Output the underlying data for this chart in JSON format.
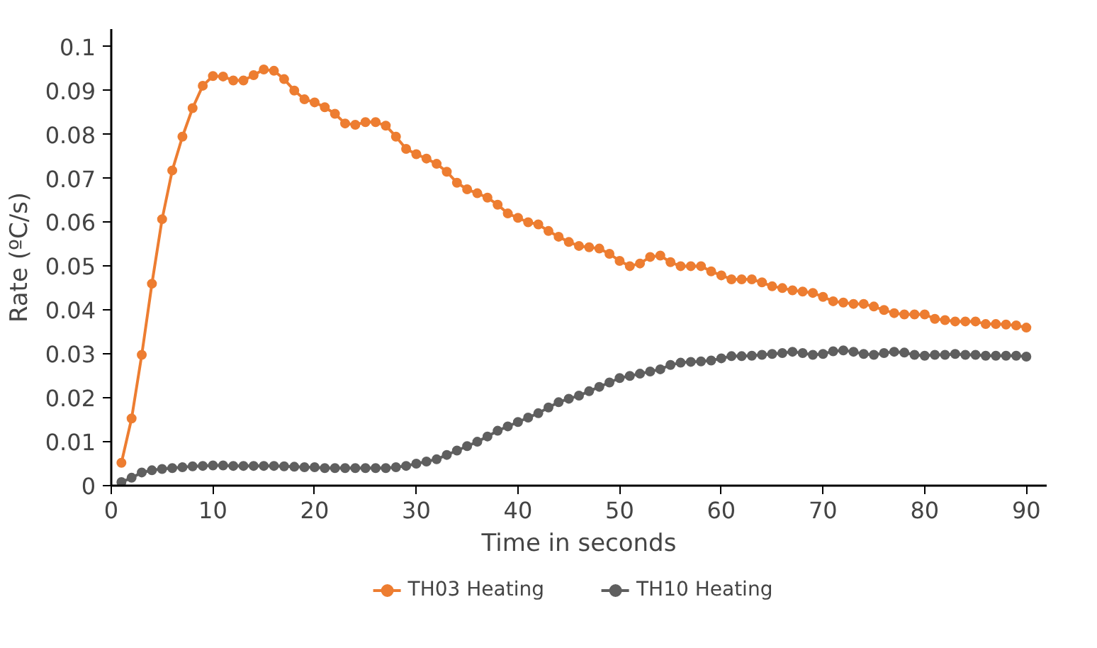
{
  "chart_data": {
    "type": "line",
    "xlabel": "Time in seconds",
    "ylabel": "Rate (ºC/s)",
    "x": [
      1,
      2,
      3,
      4,
      5,
      6,
      7,
      8,
      9,
      10,
      11,
      12,
      13,
      14,
      15,
      16,
      17,
      18,
      19,
      20,
      21,
      22,
      23,
      24,
      25,
      26,
      27,
      28,
      29,
      30,
      31,
      32,
      33,
      34,
      35,
      36,
      37,
      38,
      39,
      40,
      41,
      42,
      43,
      44,
      45,
      46,
      47,
      48,
      49,
      50,
      51,
      52,
      53,
      54,
      55,
      56,
      57,
      58,
      59,
      60,
      61,
      62,
      63,
      64,
      65,
      66,
      67,
      68,
      69,
      70,
      71,
      72,
      73,
      74,
      75,
      76,
      77,
      78,
      79,
      80,
      81,
      82,
      83,
      84,
      85,
      86,
      87,
      88,
      89,
      90
    ],
    "series": [
      {
        "name": "TH03 Heating",
        "color": "#ed7d31",
        "values": [
          0.0052,
          0.0153,
          0.0298,
          0.046,
          0.0607,
          0.0718,
          0.0795,
          0.086,
          0.0911,
          0.0933,
          0.0932,
          0.0923,
          0.0923,
          0.0935,
          0.0948,
          0.0945,
          0.0926,
          0.09,
          0.088,
          0.0873,
          0.0862,
          0.0847,
          0.0825,
          0.0822,
          0.0828,
          0.0828,
          0.082,
          0.0795,
          0.0767,
          0.0755,
          0.0745,
          0.0733,
          0.0715,
          0.069,
          0.0675,
          0.0666,
          0.0656,
          0.064,
          0.062,
          0.061,
          0.06,
          0.0595,
          0.058,
          0.0567,
          0.0555,
          0.0546,
          0.0543,
          0.054,
          0.0528,
          0.0512,
          0.05,
          0.0506,
          0.0521,
          0.0524,
          0.0509,
          0.05,
          0.05,
          0.05,
          0.0488,
          0.0479,
          0.047,
          0.047,
          0.047,
          0.0463,
          0.0454,
          0.045,
          0.0445,
          0.0442,
          0.0439,
          0.043,
          0.042,
          0.0417,
          0.0414,
          0.0414,
          0.0408,
          0.04,
          0.0393,
          0.039,
          0.039,
          0.039,
          0.038,
          0.0377,
          0.0374,
          0.0374,
          0.0374,
          0.0368,
          0.0368,
          0.0367,
          0.0365,
          0.036
        ]
      },
      {
        "name": "TH10 Heating",
        "color": "#5f5f5f",
        "values": [
          0.0008,
          0.0018,
          0.003,
          0.0035,
          0.0038,
          0.004,
          0.0042,
          0.0044,
          0.0045,
          0.0046,
          0.0046,
          0.0045,
          0.0045,
          0.0045,
          0.0045,
          0.0045,
          0.0044,
          0.0043,
          0.0042,
          0.0042,
          0.004,
          0.004,
          0.004,
          0.004,
          0.004,
          0.004,
          0.004,
          0.0042,
          0.0045,
          0.005,
          0.0055,
          0.006,
          0.007,
          0.008,
          0.009,
          0.01,
          0.0112,
          0.0125,
          0.0135,
          0.0145,
          0.0155,
          0.0165,
          0.0178,
          0.019,
          0.0198,
          0.0205,
          0.0215,
          0.0225,
          0.0235,
          0.0245,
          0.025,
          0.0255,
          0.026,
          0.0265,
          0.0275,
          0.028,
          0.0282,
          0.0283,
          0.0285,
          0.029,
          0.0295,
          0.0295,
          0.0296,
          0.0298,
          0.03,
          0.0302,
          0.0305,
          0.0302,
          0.0298,
          0.03,
          0.0306,
          0.0308,
          0.0305,
          0.03,
          0.0298,
          0.0302,
          0.0305,
          0.0303,
          0.0298,
          0.0296,
          0.0298,
          0.0298,
          0.03,
          0.0298,
          0.0298,
          0.0296,
          0.0296,
          0.0296,
          0.0296,
          0.0294
        ]
      }
    ],
    "xlim": [
      0,
      92
    ],
    "ylim": [
      0,
      0.104
    ],
    "xticks": [
      0,
      10,
      20,
      30,
      40,
      50,
      60,
      70,
      80,
      90
    ],
    "yticks": [
      {
        "value": 0,
        "label": "0"
      },
      0.01,
      0.02,
      0.03,
      0.04,
      0.05,
      0.06,
      0.07,
      0.08,
      0.09,
      0.1
    ],
    "grid": false,
    "legend": "bottom",
    "marker": "circle",
    "line_style": "solid"
  }
}
